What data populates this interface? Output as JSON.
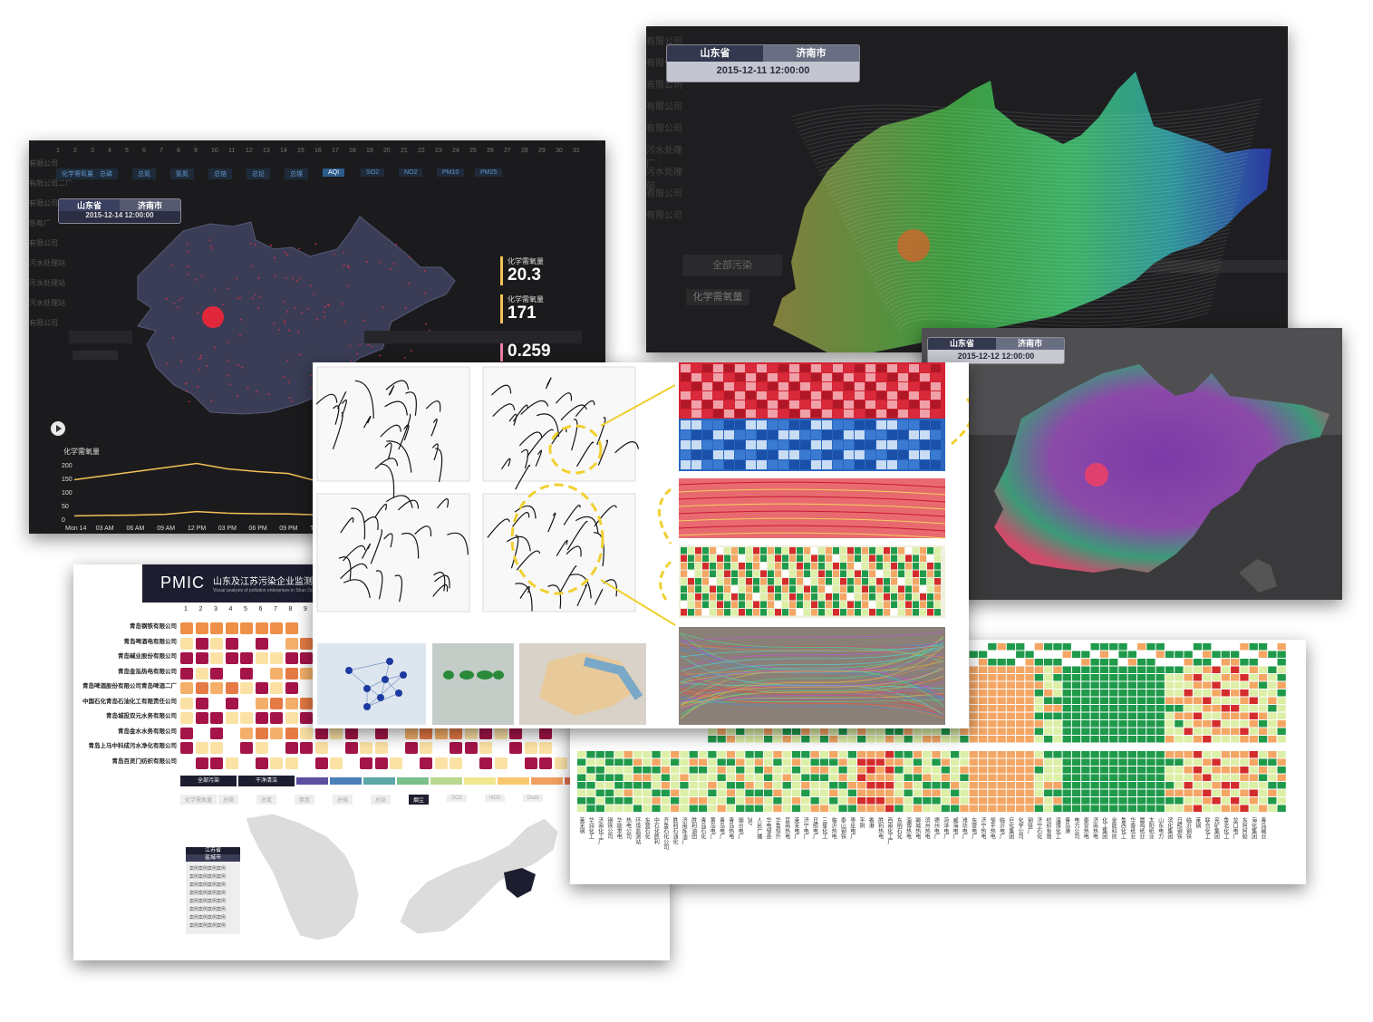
{
  "panel_aqi": {
    "hours": [
      "1",
      "2",
      "3",
      "4",
      "5",
      "6",
      "7",
      "8",
      "9",
      "10",
      "11",
      "12",
      "13",
      "14",
      "15",
      "16",
      "17",
      "18",
      "19",
      "20",
      "21",
      "22",
      "23",
      "24",
      "25",
      "26",
      "27",
      "28",
      "29",
      "30",
      "31"
    ],
    "metrics": [
      "化学需氧量",
      "总磷",
      "总氮",
      "氨氮",
      "总铬",
      "总铅",
      "总镍",
      "AQI",
      "SO2",
      "NO2",
      "PM10",
      "PM25"
    ],
    "selected_metric": "AQI",
    "badge": {
      "province": "山东省",
      "city": "济南市",
      "time": "2015-12-14 12:00:00"
    },
    "sidebar_labels": [
      "有限公司",
      "有限公司二厂",
      "有限公司",
      "热电厂",
      "有限公司",
      "污水处理站",
      "污水处理站",
      "污水处理站",
      "有限公司"
    ],
    "kpis": [
      {
        "label": "化学需氧量",
        "value": "20.3",
        "color": "#f4c15a"
      },
      {
        "label": "化学需氧量",
        "value": "171",
        "color": "#f4c15a"
      },
      {
        "label": "氨氮",
        "value": "0.259",
        "color": "#f080a8"
      }
    ],
    "chart_title": "化学需氧量",
    "chart_data": {
      "type": "line",
      "title": "化学需氧量",
      "x": [
        "Mon 14",
        "03 AM",
        "06 AM",
        "09 AM",
        "12 PM",
        "03 PM",
        "06 PM",
        "09 PM",
        "Tue 15"
      ],
      "y_ticks": [
        "200",
        "150",
        "100",
        "50",
        "0"
      ],
      "ylim": [
        0,
        200
      ],
      "series": [
        {
          "values": [
            145,
            160,
            175,
            190,
            205,
            185,
            175,
            168,
            138
          ],
          "color": "#f4c15a"
        },
        {
          "values": [
            12,
            14,
            15,
            18,
            28,
            22,
            20,
            19,
            16
          ],
          "color": "#f4c15a"
        }
      ]
    }
  },
  "panel_wind": {
    "badge": {
      "province": "山东省",
      "city": "济南市",
      "time": "2015-12-11 12:00:00"
    },
    "sidebar_labels": [
      "有限公司",
      "有限公司",
      "有限公司",
      "有限公司",
      "有限公司",
      "污水处理厂",
      "污水处理站",
      "有限公司",
      "有限公司"
    ],
    "button": "全部污染",
    "metric": "化学需氧量"
  },
  "panel_purple": {
    "badge": {
      "province": "山东省",
      "city": "济南市",
      "time": "2015-12-12 12:00:00"
    }
  },
  "panel_pmic": {
    "logo": "PMIC",
    "title": "山东及江苏污染企业监测可视分析",
    "subtitle": "Visual analysis of pollution enterprises in Shan Dong and Jiangsu",
    "days": [
      "1",
      "2",
      "3",
      "4",
      "5",
      "6",
      "7",
      "8",
      "9"
    ],
    "companies": [
      "青岛钢铁有限公司",
      "青岛啤酒电有限公司",
      "青岛碱业股份有限公司",
      "青岛金泓热电有限公司",
      "青岛啤酒股份有限公司青岛啤酒二厂",
      "中国石化青岛石油化工有限责任公司",
      "青岛城投双元水务有限公司",
      "青岛金水水务有限公司",
      "青岛上马中科成污水净化有限公司",
      "青岛百灵门纺织有限公司"
    ],
    "buttons": [
      "全部污染",
      "干净清洁"
    ],
    "metrics": [
      "化学需氧量",
      "总磷",
      "总氮",
      "氨氮",
      "总铬",
      "总铅",
      "烟尘",
      "SO2",
      "NO2",
      "Dust"
    ],
    "selected_metric": "烟尘",
    "legend_box": {
      "province": "江苏省",
      "city": "盐城市",
      "rows": [
        "案例案例案例案例",
        "案例案例案例案例",
        "案例案例案例案例",
        "案例案例案例案例",
        "案例案例案例案例",
        "案例案例案例案例",
        "案例案例案例案例",
        "案例案例案例案例"
      ]
    }
  },
  "panel_heatmap": {
    "col_labels": [
      "莱芜钢",
      "华润化工",
      "济南化工厂",
      "钢铁公司",
      "华能发电",
      "热电公司",
      "环境监测站",
      "东营石化",
      "中石化胜利",
      "齐鲁石化公司",
      "胜利石油化",
      "济南炼油厂",
      "胜利油田",
      "青岛石化",
      "黄岛电厂",
      "青岛电厂",
      "青岛热电",
      "烟台电厂",
      "2号",
      "人民广播",
      "华电邹县",
      "华鲁恒升",
      "莒南热电",
      "莱芜电厂",
      "济宁电厂",
      "日照电厂",
      "三星化工",
      "临沂热电",
      "泰山钢铁",
      "枣庄电厂",
      "平阴",
      "香港",
      "胜利热电",
      "西南化工厂",
      "东明石化",
      "淄博热电",
      "聊城热电",
      "滨州热电",
      "德州电厂",
      "菏泽电厂",
      "威海电厂",
      "潍坊电厂",
      "东营电厂",
      "济宁热电",
      "邹平热电",
      "临沂电厂",
      "巨化集团",
      "化学公司",
      "钢铁厂",
      "济宁石化",
      "纺织有限",
      "淄博化工",
      "青岛港",
      "电力公司",
      "泰安热电",
      "济南热电",
      "化工集团",
      "金能科技",
      "鲁西化工",
      "华泰纸业",
      "晨鸣纸业",
      "太阳纸业",
      "山东电力",
      "滨化集团",
      "日照钢铁",
      "临沂钢铁",
      "莱钢",
      "联合化工",
      "兖矿集团",
      "鲁北化工",
      "龙口电厂",
      "东阿阿胶",
      "海化集团",
      "青岛碱业"
    ]
  },
  "panel_sketch": {}
}
